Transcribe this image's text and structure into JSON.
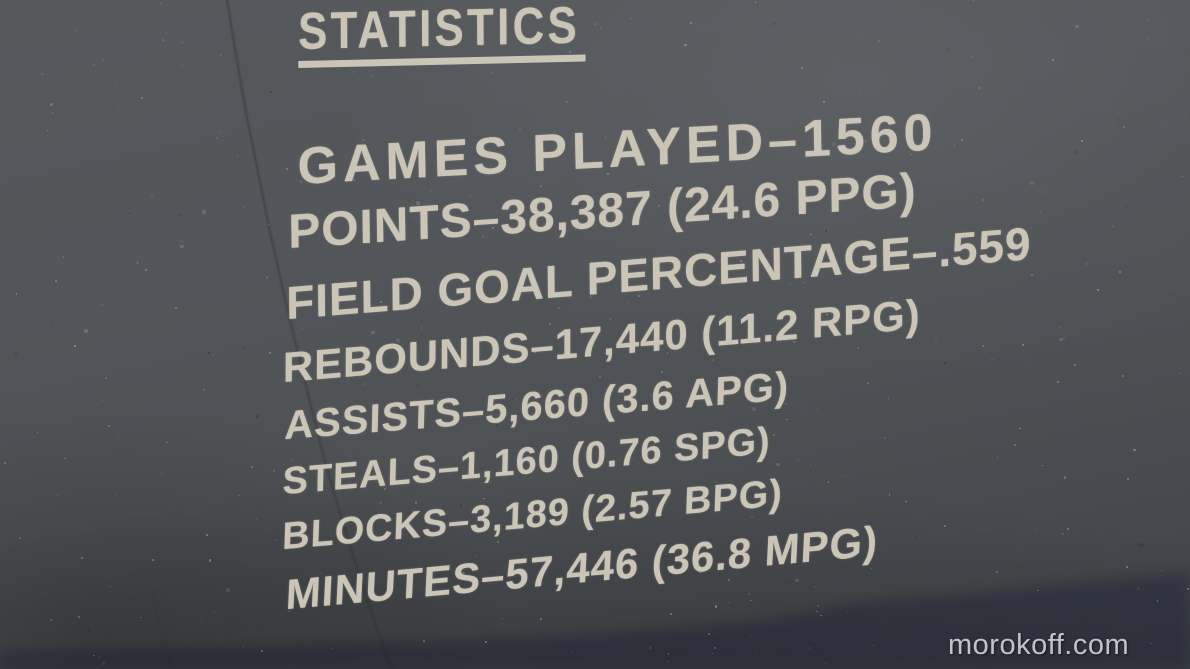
{
  "photo": {
    "title": "STATISTICS",
    "stats": [
      {
        "text": "GAMES PLAYED–1560"
      },
      {
        "text": "POINTS–38,387 (24.6 PPG)"
      },
      {
        "text": "FIELD GOAL PERCENTAGE–.559"
      },
      {
        "text": "REBOUNDS–17,440 (11.2 RPG)"
      },
      {
        "text": "ASSISTS–5,660 (3.6 APG)"
      },
      {
        "text": "STEALS–1,160 (0.76 SPG)"
      },
      {
        "text": "BLOCKS–3,189 (2.57 BPG)"
      },
      {
        "text": "MINUTES–57,446 (36.8 MPG)"
      }
    ],
    "watermark": "morokoff.com",
    "colors": {
      "stone": "#50545a",
      "engraving": "#cbc5b8",
      "watermark_text": "#d6dbdf"
    }
  }
}
